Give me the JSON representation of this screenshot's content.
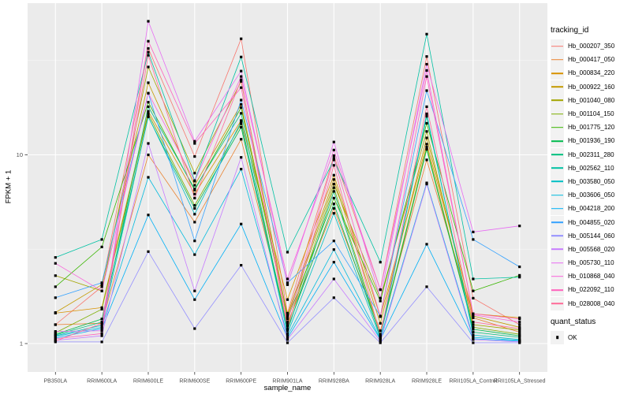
{
  "style": {
    "panel_bg": "#EBEBEB",
    "grid_major": "#FFFFFF",
    "grid_minor": "#F5F5F5",
    "tick_label_color": "#4D4D4D",
    "axis_title_color": "#000000",
    "legend_key_bg": "#F2F2F2",
    "point_color": "#000000"
  },
  "chart_data": {
    "type": "line",
    "title": "",
    "xlabel": "sample_name",
    "ylabel": "FPKM + 1",
    "y_scale": "log10",
    "grid": true,
    "legend_position": "right",
    "y_ticks": [
      {
        "label": "1",
        "value": 1
      },
      {
        "label": "10",
        "value": 10
      }
    ],
    "y_minor_breaks": [
      3.1623,
      31.623
    ],
    "categories": [
      "PB350LA",
      "RRIM600LA",
      "RRIM600LE",
      "RRIM600SE",
      "RRIM600PE",
      "RRIM901LA",
      "RRIM928BA",
      "RRIM928LA",
      "RRIM928LE",
      "RRII105LA_Control",
      "RRII105LA_Stressed"
    ],
    "marker": {
      "shape": "square",
      "color": "#000000",
      "size": 3.2
    },
    "legend": {
      "title": "tracking_id"
    },
    "quant_legend": {
      "title": "quant_status",
      "items": [
        {
          "label": "OK"
        }
      ]
    },
    "series": [
      {
        "name": "Hb_000207_350",
        "color": "#F8766D",
        "values": [
          1.26,
          2.0,
          36.6,
          9.8,
          41.2,
          1.45,
          9.9,
          1.93,
          33.2,
          1.74,
          1.26
        ]
      },
      {
        "name": "Hb_000417_050",
        "color": "#EA8331",
        "values": [
          1.26,
          1.28,
          10.0,
          4.4,
          12.1,
          1.28,
          5.2,
          1.17,
          9.4,
          1.37,
          1.15
        ]
      },
      {
        "name": "Hb_000834_220",
        "color": "#D89200",
        "values": [
          1.45,
          1.55,
          17.0,
          6.2,
          15.2,
          1.71,
          7.8,
          1.39,
          11.4,
          1.44,
          1.37
        ]
      },
      {
        "name": "Hb_000922_160",
        "color": "#C49A00",
        "values": [
          1.46,
          2.05,
          24.1,
          6.9,
          18.5,
          1.42,
          7.4,
          1.28,
          12.3,
          1.4,
          1.22
        ]
      },
      {
        "name": "Hb_001040_080",
        "color": "#A3A500",
        "values": [
          2.29,
          1.9,
          29.2,
          8.0,
          24.5,
          1.38,
          7.0,
          1.74,
          13.3,
          1.26,
          1.18
        ]
      },
      {
        "name": "Hb_001104_150",
        "color": "#7CAE00",
        "values": [
          1.14,
          1.52,
          16.5,
          5.4,
          14.6,
          1.24,
          6.7,
          1.12,
          11.0,
          1.22,
          1.12
        ]
      },
      {
        "name": "Hb_001775_120",
        "color": "#39B600",
        "values": [
          2.0,
          3.25,
          19.0,
          6.5,
          17.8,
          1.35,
          5.9,
          1.68,
          14.7,
          1.9,
          2.3
        ]
      },
      {
        "name": "Hb_001936_190",
        "color": "#00BB4E",
        "values": [
          1.12,
          1.35,
          15.9,
          5.2,
          14.0,
          1.2,
          5.5,
          1.1,
          10.7,
          1.19,
          1.1
        ]
      },
      {
        "name": "Hb_002311_280",
        "color": "#00BF7D",
        "values": [
          1.11,
          1.3,
          18.0,
          6.6,
          16.6,
          1.17,
          6.4,
          1.08,
          16.0,
          1.15,
          1.08
        ]
      },
      {
        "name": "Hb_002562_110",
        "color": "#00C1A3",
        "values": [
          2.86,
          3.56,
          35.0,
          7.3,
          33.0,
          3.05,
          9.4,
          2.7,
          43.6,
          2.2,
          2.25
        ]
      },
      {
        "name": "Hb_003580_050",
        "color": "#00BFC4",
        "values": [
          1.1,
          1.25,
          16.0,
          4.85,
          15.0,
          1.13,
          4.9,
          1.07,
          16.5,
          1.11,
          1.05
        ]
      },
      {
        "name": "Hb_003606_050",
        "color": "#00BADE",
        "values": [
          1.09,
          1.22,
          7.6,
          2.96,
          8.4,
          1.1,
          3.15,
          1.06,
          7.1,
          1.08,
          1.04
        ]
      },
      {
        "name": "Hb_004218_200",
        "color": "#00B0F6",
        "values": [
          1.07,
          1.2,
          4.8,
          1.71,
          4.3,
          1.07,
          2.7,
          1.05,
          3.36,
          1.06,
          1.03
        ]
      },
      {
        "name": "Hb_004855_020",
        "color": "#35A2FF",
        "values": [
          1.75,
          2.1,
          21.2,
          3.5,
          19.5,
          2.1,
          3.5,
          1.4,
          21.9,
          3.56,
          2.55
        ]
      },
      {
        "name": "Hb_005144_060",
        "color": "#9590FF",
        "values": [
          1.02,
          1.02,
          3.07,
          1.2,
          2.6,
          1.01,
          1.75,
          1.01,
          2.0,
          1.01,
          1.01
        ]
      },
      {
        "name": "Hb_005568_020",
        "color": "#C77CFF",
        "values": [
          1.04,
          1.1,
          11.5,
          1.9,
          9.7,
          1.05,
          2.2,
          1.03,
          7.0,
          1.05,
          1.02
        ]
      },
      {
        "name": "Hb_005730_110",
        "color": "#E76BF3",
        "values": [
          1.16,
          1.17,
          51.0,
          11.8,
          27.8,
          2.05,
          11.7,
          1.74,
          30.2,
          3.9,
          4.2
        ]
      },
      {
        "name": "Hb_010868_040",
        "color": "#FA62DB",
        "values": [
          2.66,
          1.9,
          21.2,
          7.25,
          26.0,
          2.2,
          10.6,
          1.93,
          28.0,
          1.42,
          1.3
        ]
      },
      {
        "name": "Hb_022092_110",
        "color": "#FF62BC",
        "values": [
          1.06,
          1.13,
          40.0,
          11.5,
          22.7,
          1.3,
          9.6,
          1.39,
          26.0,
          1.44,
          1.35
        ]
      },
      {
        "name": "Hb_028008_040",
        "color": "#FF6A98",
        "values": [
          1.03,
          1.28,
          33.7,
          5.9,
          25.0,
          1.2,
          8.8,
          1.1,
          18.0,
          1.3,
          1.2
        ]
      }
    ]
  }
}
